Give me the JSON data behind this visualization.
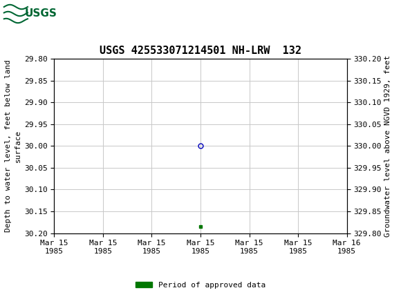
{
  "title": "USGS 425533071214501 NH-LRW  132",
  "ylabel_left": "Depth to water level, feet below land\nsurface",
  "ylabel_right": "Groundwater level above NGVD 1929, feet",
  "ylim_left_top": 29.8,
  "ylim_left_bottom": 30.2,
  "ylim_right_top": 330.2,
  "ylim_right_bottom": 329.8,
  "yticks_left": [
    29.8,
    29.85,
    29.9,
    29.95,
    30.0,
    30.05,
    30.1,
    30.15,
    30.2
  ],
  "yticks_right": [
    329.8,
    329.85,
    329.9,
    329.95,
    330.0,
    330.05,
    330.1,
    330.15,
    330.2
  ],
  "data_point_x": 3.0,
  "data_point_y": 30.0,
  "approved_marker_x": 3.0,
  "approved_marker_y": 30.185,
  "circle_color": "#0000bb",
  "approved_color": "#007700",
  "background_color": "#ffffff",
  "header_bg_color": "#006633",
  "header_text_color": "#ffffff",
  "grid_color": "#c8c8c8",
  "title_fontsize": 11,
  "axis_label_fontsize": 8,
  "tick_fontsize": 8,
  "legend_label": "Period of approved data",
  "x_lim_min": 0,
  "x_lim_max": 6,
  "xtick_positions": [
    0,
    1,
    2,
    3,
    4,
    5,
    6
  ],
  "xtick_labels": [
    "Mar 15\n1985",
    "Mar 15\n1985",
    "Mar 15\n1985",
    "Mar 15\n1985",
    "Mar 15\n1985",
    "Mar 15\n1985",
    "Mar 16\n1985"
  ]
}
